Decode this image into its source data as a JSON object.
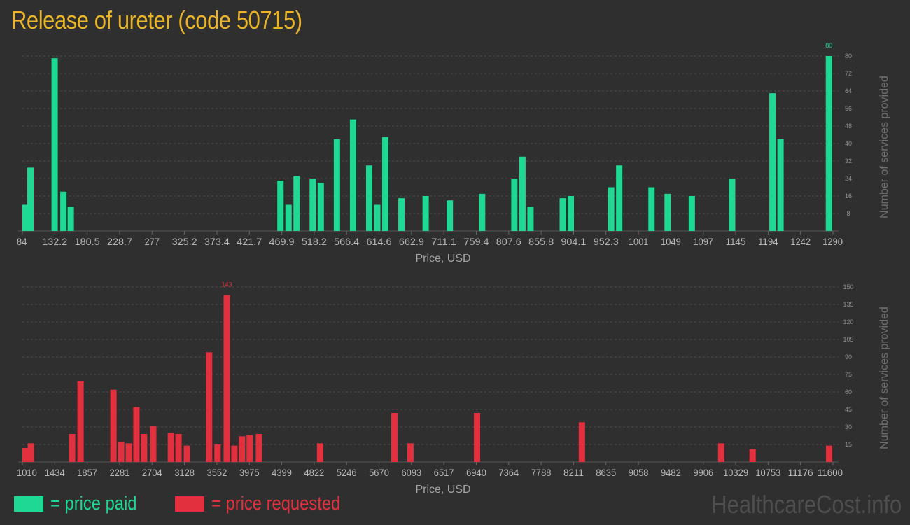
{
  "title": "Release of ureter (code 50715)",
  "legend": {
    "paid_label": "= price paid",
    "requested_label": "= price requested"
  },
  "watermark": "HealthcareCost.info",
  "colors": {
    "paid": "#1fd893",
    "requested": "#e3303f",
    "title": "#e9b428"
  },
  "chart_data": [
    {
      "type": "bar",
      "series": [
        {
          "name": "price paid"
        }
      ],
      "xlabel": "Price, USD",
      "ylabel": "Number of services provided",
      "xlim": [
        84,
        1290
      ],
      "ylim": [
        0,
        80
      ],
      "xticks": [
        "84",
        "132.2",
        "180.5",
        "228.7",
        "277",
        "325.2",
        "373.4",
        "421.7",
        "469.9",
        "518.2",
        "566.4",
        "614.6",
        "662.9",
        "711.1",
        "759.4",
        "807.6",
        "855.8",
        "904.1",
        "952.3",
        "1001",
        "1049",
        "1097",
        "1145",
        "1194",
        "1242",
        "1290"
      ],
      "yticks": [
        "8",
        "16",
        "24",
        "32",
        "40",
        "48",
        "56",
        "64",
        "72",
        "80"
      ],
      "max_label": "80",
      "x": [
        84,
        96,
        132,
        145,
        156,
        468,
        480,
        492,
        516,
        528,
        552,
        576,
        600,
        612,
        624,
        648,
        684,
        720,
        768,
        816,
        828,
        840,
        888,
        900,
        960,
        972,
        1020,
        1044,
        1080,
        1140,
        1200,
        1212,
        1284
      ],
      "y": [
        12,
        29,
        79,
        18,
        11,
        23,
        12,
        25,
        24,
        22,
        42,
        51,
        30,
        12,
        43,
        15,
        16,
        14,
        17,
        24,
        34,
        11,
        15,
        16,
        20,
        30,
        20,
        17,
        16,
        24,
        63,
        42,
        80
      ]
    },
    {
      "type": "bar",
      "series": [
        {
          "name": "price requested"
        }
      ],
      "xlabel": "Price, USD",
      "ylabel": "Number of services provided",
      "xlim": [
        1010,
        11600
      ],
      "ylim": [
        0,
        150
      ],
      "xticks": [
        "1010",
        "1434",
        "1857",
        "2281",
        "2704",
        "3128",
        "3552",
        "3975",
        "4399",
        "4822",
        "5246",
        "5670",
        "6093",
        "6517",
        "6940",
        "7364",
        "7788",
        "8211",
        "8635",
        "9058",
        "9482",
        "9906",
        "10329",
        "10753",
        "11176",
        "11600"
      ],
      "yticks": [
        "15",
        "30",
        "45",
        "60",
        "75",
        "90",
        "105",
        "120",
        "135",
        "150"
      ],
      "max_label": "143",
      "x": [
        1010,
        1120,
        1660,
        1770,
        2200,
        2300,
        2400,
        2500,
        2600,
        2720,
        2950,
        3050,
        3160,
        3450,
        3560,
        3680,
        3780,
        3880,
        3980,
        4100,
        4900,
        5870,
        6080,
        6950,
        8320,
        10140,
        10550,
        11550
      ],
      "y": [
        12,
        16,
        24,
        69,
        62,
        17,
        16,
        47,
        24,
        31,
        25,
        24,
        14,
        94,
        15,
        143,
        14,
        22,
        23,
        24,
        16,
        42,
        16,
        42,
        34,
        16,
        11,
        14
      ]
    }
  ]
}
